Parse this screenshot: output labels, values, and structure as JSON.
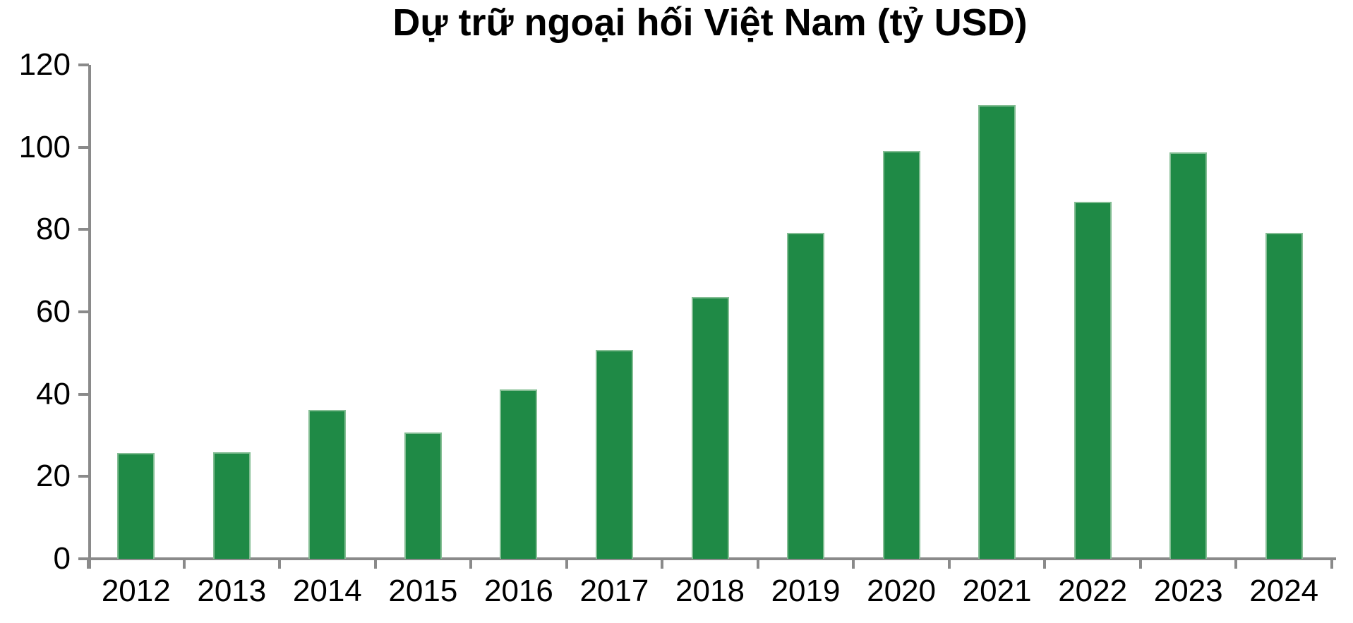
{
  "title": "Dự trữ ngoại hối Việt Nam (tỷ USD)",
  "colors": {
    "bar": "#1f8a46",
    "bar_edge": "#83bd93",
    "axis": "#8a8a8a",
    "text": "#000000",
    "background": "#ffffff"
  },
  "chart_data": {
    "type": "bar",
    "title": "Dự trữ ngoại hối Việt Nam (tỷ USD)",
    "categories": [
      "2012",
      "2013",
      "2014",
      "2015",
      "2016",
      "2017",
      "2018",
      "2019",
      "2020",
      "2021",
      "2022",
      "2023",
      "2024"
    ],
    "values": [
      25.5,
      25.8,
      36,
      30.5,
      41,
      50.5,
      63.5,
      79,
      99,
      110,
      86.5,
      98.5,
      79
    ],
    "xlabel": "",
    "ylabel": "",
    "ylim": [
      0,
      120
    ],
    "yticks": [
      0,
      20,
      40,
      60,
      80,
      100,
      120
    ],
    "grid": false,
    "legend_position": "none"
  }
}
